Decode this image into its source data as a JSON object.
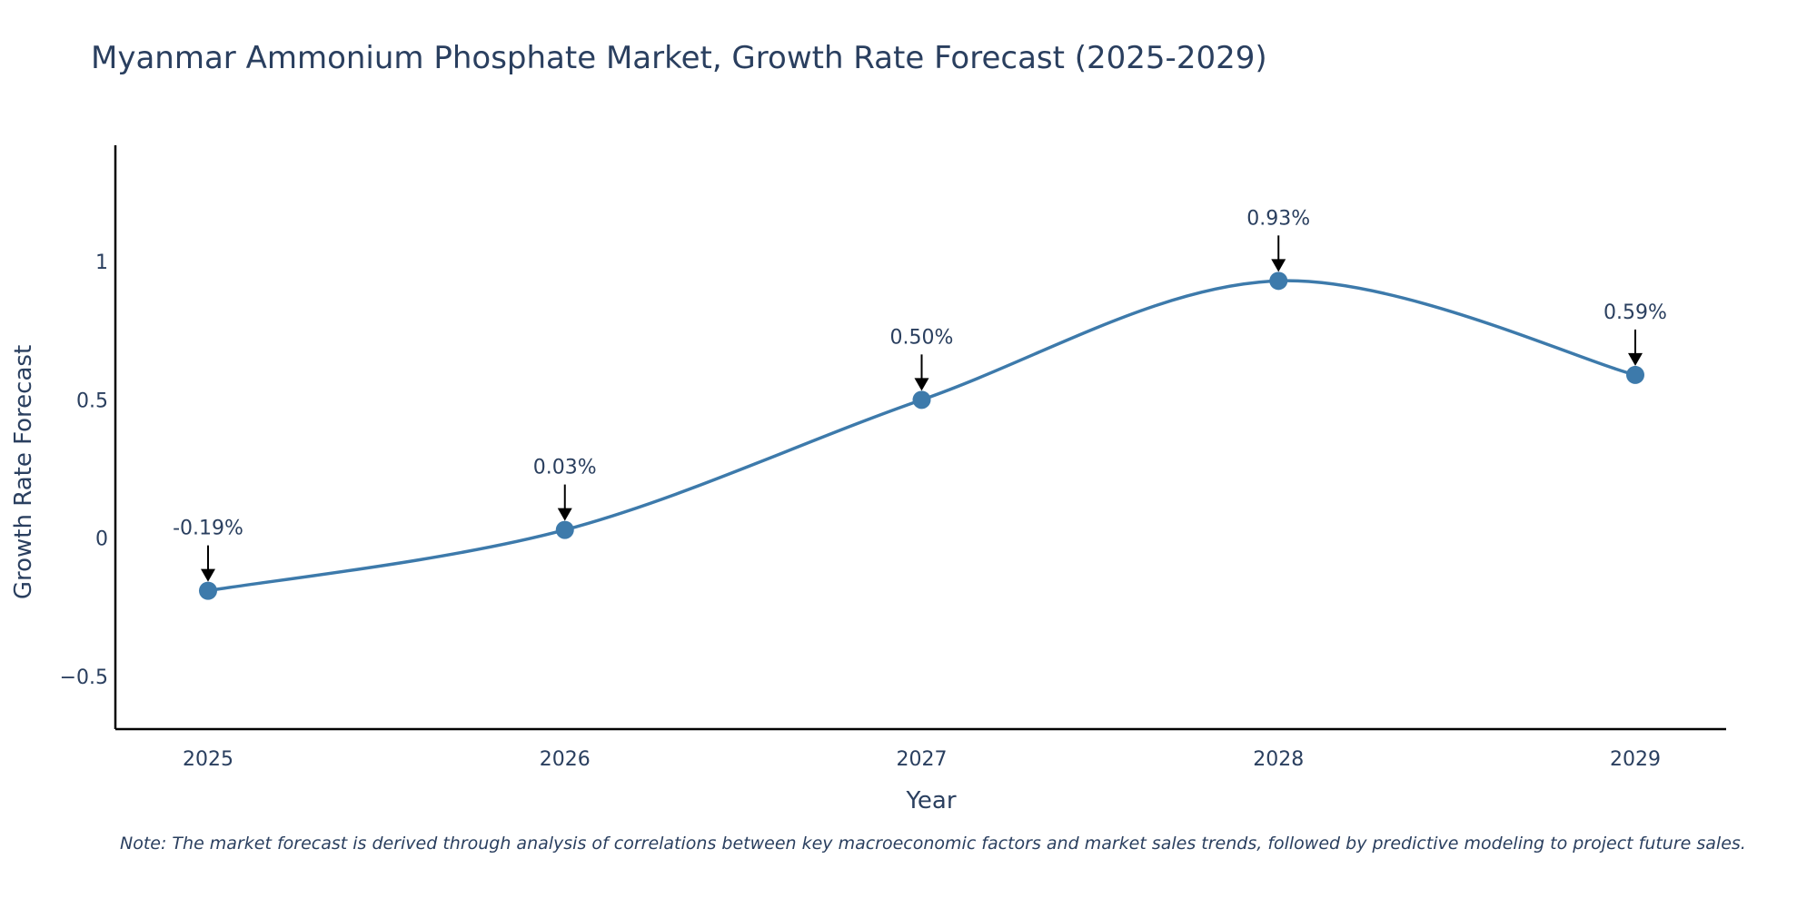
{
  "chart_data": {
    "type": "line",
    "title": "Myanmar Ammonium Phosphate Market, Growth Rate Forecast (2025-2029)",
    "xlabel": "Year",
    "ylabel": "Growth Rate Forecast",
    "categories": [
      "2025",
      "2026",
      "2027",
      "2028",
      "2029"
    ],
    "series": [
      {
        "name": "Growth Rate Forecast",
        "values": [
          -0.19,
          0.03,
          0.5,
          0.93,
          0.59
        ]
      }
    ],
    "data_labels": [
      "-0.19%",
      "0.03%",
      "0.50%",
      "0.93%",
      "0.59%"
    ],
    "y_ticks": [
      -0.5,
      0,
      0.5,
      1
    ],
    "y_tick_labels": [
      "−0.5",
      "0",
      "0.5",
      "1"
    ],
    "ylim": [
      -0.69,
      1.42
    ],
    "grid": false,
    "line_color": "#3d7aab",
    "marker_color": "#3d7aab",
    "note": "Note: The market forecast is derived through analysis of correlations between key macroeconomic factors and market sales trends, followed by predictive modeling to project future sales."
  }
}
